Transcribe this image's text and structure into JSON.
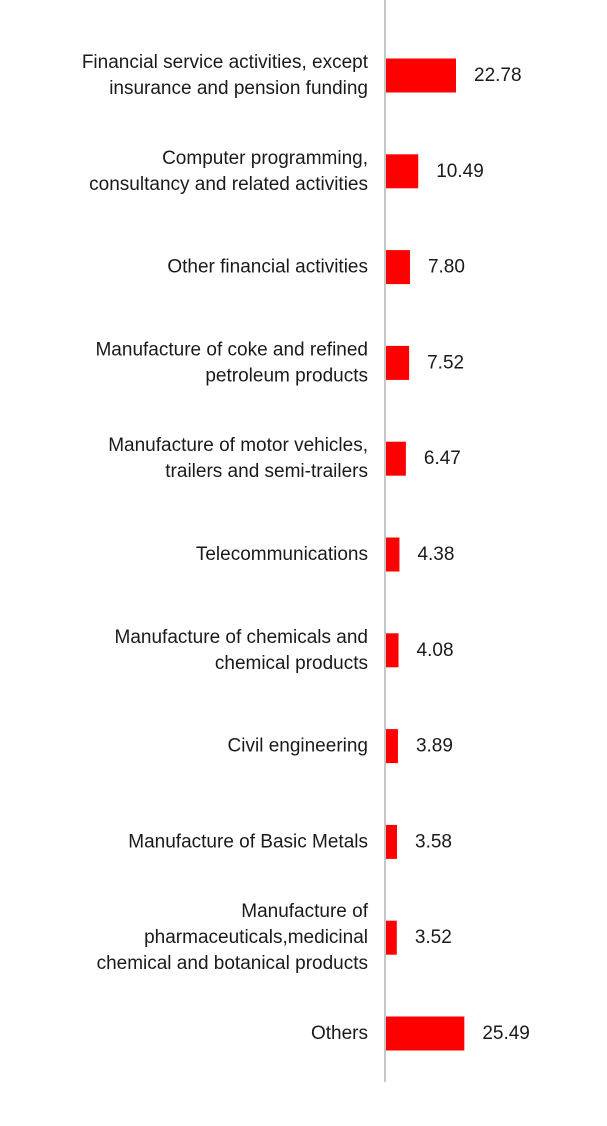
{
  "colors": {
    "bar": "#ff0000",
    "axis": "#b3b3b3",
    "text": "#1a1a1a"
  },
  "chart_data": {
    "type": "bar",
    "orientation": "horizontal",
    "title": "",
    "xlabel": "",
    "ylabel": "",
    "xlim": [
      0,
      26
    ],
    "grid": false,
    "categories": [
      [
        "Financial service activities, except",
        "insurance and pension funding"
      ],
      [
        "Computer programming,",
        "consultancy and related activities"
      ],
      [
        "Other financial activities"
      ],
      [
        "Manufacture of coke and refined",
        "petroleum products"
      ],
      [
        "Manufacture of motor vehicles,",
        "trailers and semi-trailers"
      ],
      [
        "Telecommunications"
      ],
      [
        "Manufacture of chemicals and",
        "chemical products"
      ],
      [
        "Civil engineering"
      ],
      [
        "Manufacture of Basic Metals"
      ],
      [
        "Manufacture of",
        "pharmaceuticals,medicinal",
        "chemical and botanical products"
      ],
      [
        "Others"
      ]
    ],
    "values": [
      22.78,
      10.49,
      7.8,
      7.52,
      6.47,
      4.38,
      4.08,
      3.89,
      3.58,
      3.52,
      25.49
    ],
    "value_labels": [
      "22.78",
      "10.49",
      "7.80",
      "7.52",
      "6.47",
      "4.38",
      "4.08",
      "3.89",
      "3.58",
      "3.52",
      "25.49"
    ]
  }
}
